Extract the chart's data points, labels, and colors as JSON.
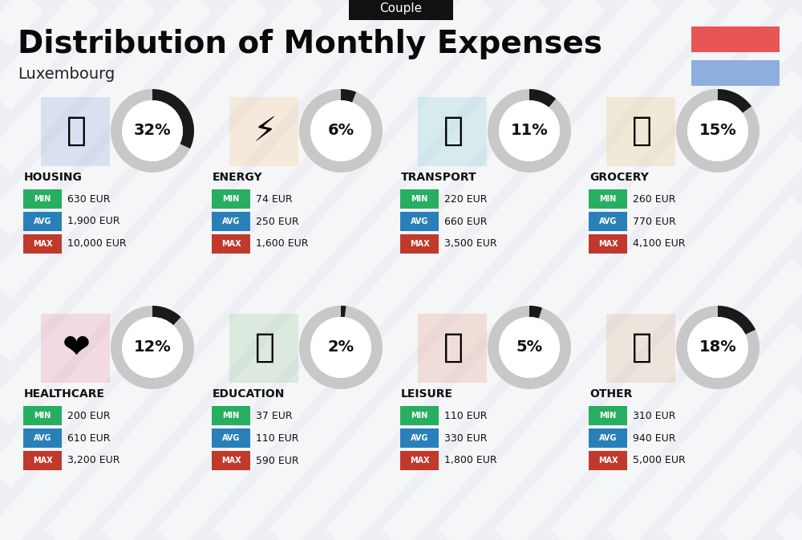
{
  "title": "Distribution of Monthly Expenses",
  "subtitle": "Luxembourg",
  "tag": "Couple",
  "bg_color": "#eeeff4",
  "categories": [
    {
      "name": "HOUSING",
      "pct": 32,
      "min": "630 EUR",
      "avg": "1,900 EUR",
      "max": "10,000 EUR",
      "row": 0,
      "col": 0
    },
    {
      "name": "ENERGY",
      "pct": 6,
      "min": "74 EUR",
      "avg": "250 EUR",
      "max": "1,600 EUR",
      "row": 0,
      "col": 1
    },
    {
      "name": "TRANSPORT",
      "pct": 11,
      "min": "220 EUR",
      "avg": "660 EUR",
      "max": "3,500 EUR",
      "row": 0,
      "col": 2
    },
    {
      "name": "GROCERY",
      "pct": 15,
      "min": "260 EUR",
      "avg": "770 EUR",
      "max": "4,100 EUR",
      "row": 0,
      "col": 3
    },
    {
      "name": "HEALTHCARE",
      "pct": 12,
      "min": "200 EUR",
      "avg": "610 EUR",
      "max": "3,200 EUR",
      "row": 1,
      "col": 0
    },
    {
      "name": "EDUCATION",
      "pct": 2,
      "min": "37 EUR",
      "avg": "110 EUR",
      "max": "590 EUR",
      "row": 1,
      "col": 1
    },
    {
      "name": "LEISURE",
      "pct": 5,
      "min": "110 EUR",
      "avg": "330 EUR",
      "max": "1,800 EUR",
      "row": 1,
      "col": 2
    },
    {
      "name": "OTHER",
      "pct": 18,
      "min": "310 EUR",
      "avg": "940 EUR",
      "max": "5,000 EUR",
      "row": 1,
      "col": 3
    }
  ],
  "min_color": "#27ae60",
  "avg_color": "#2980b9",
  "max_color": "#c0392b",
  "donut_bg": "#c8c8c8",
  "donut_fill": "#1a1a1a",
  "red_rect": "#e85555",
  "blue_rect": "#8faee0",
  "tag_bg": "#111111",
  "tag_color": "#ffffff",
  "stripe_color": "#ffffff",
  "title_fontsize": 28,
  "subtitle_fontsize": 14,
  "tag_fontsize": 11,
  "cat_name_fontsize": 10,
  "pct_fontsize": 14,
  "label_fontsize": 7,
  "value_fontsize": 9
}
